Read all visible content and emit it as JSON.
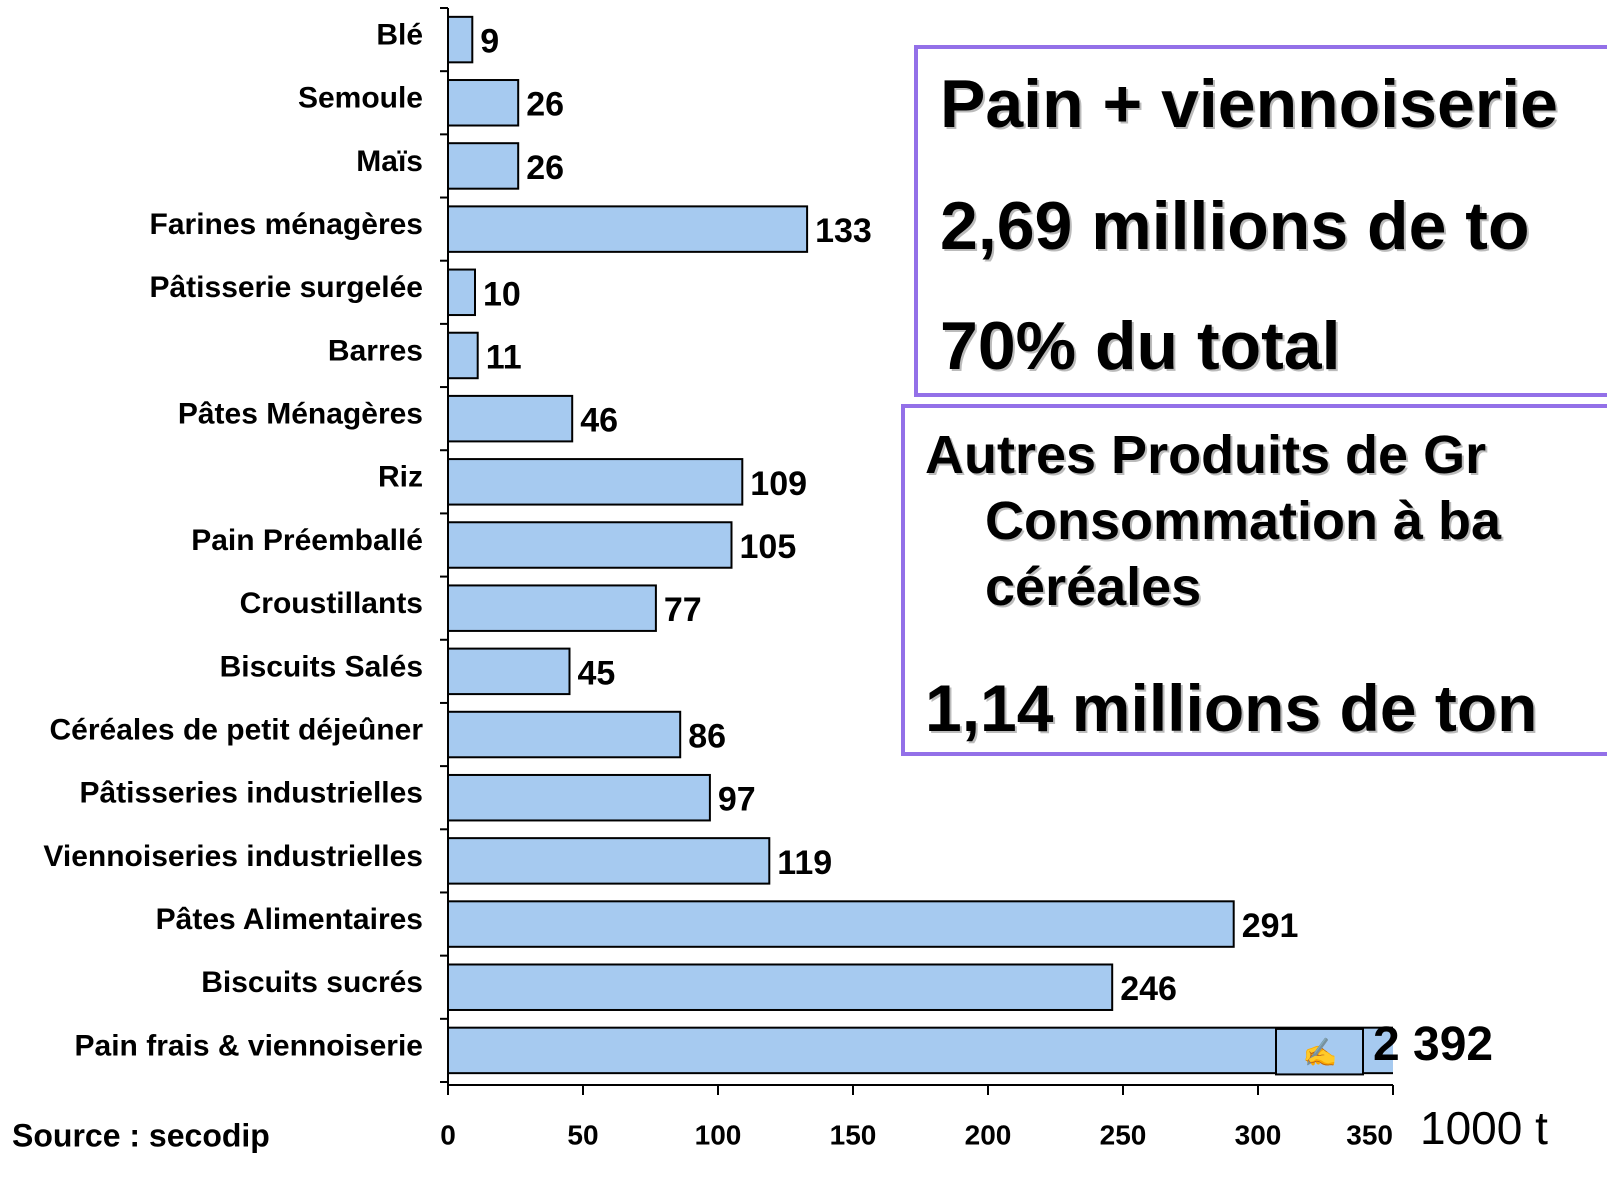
{
  "chart_data": {
    "type": "bar",
    "orientation": "horizontal",
    "categories": [
      "Blé",
      "Semoule",
      "Maïs",
      "Farines ménagères",
      "Pâtisserie surgelée",
      "Barres",
      "Pâtes Ménagères",
      "Riz",
      "Pain Préemballé",
      "Croustillants",
      "Biscuits Salés",
      "Céréales de petit déjeûner",
      "Pâtisseries industrielles",
      "Viennoiseries industrielles",
      "Pâtes Alimentaires",
      "Biscuits sucrés",
      "Pain frais & viennoiserie"
    ],
    "values": [
      9,
      26,
      26,
      133,
      10,
      11,
      46,
      109,
      105,
      77,
      45,
      86,
      97,
      119,
      291,
      246,
      2392
    ],
    "value_labels": [
      "9",
      "26",
      "26",
      "133",
      "10",
      "11",
      "46",
      "109",
      "105",
      "77",
      "45",
      "86",
      "97",
      "119",
      "291",
      "246",
      "2 392"
    ],
    "color": "#a6caf0",
    "xlim": [
      0,
      350
    ],
    "xticks": [
      0,
      50,
      100,
      150,
      200,
      250,
      300,
      350
    ],
    "x_label": "1000 t",
    "source": "Source : secodip",
    "text_boxes": [
      {
        "lines": [
          "Pain + viennoiserie",
          "2,69 millions de to",
          "70% du total"
        ]
      },
      {
        "lines": [
          "Autres Produits de Gr",
          "Consommation à ba",
          "céréales",
          "1,14 millions de ton"
        ]
      }
    ]
  }
}
